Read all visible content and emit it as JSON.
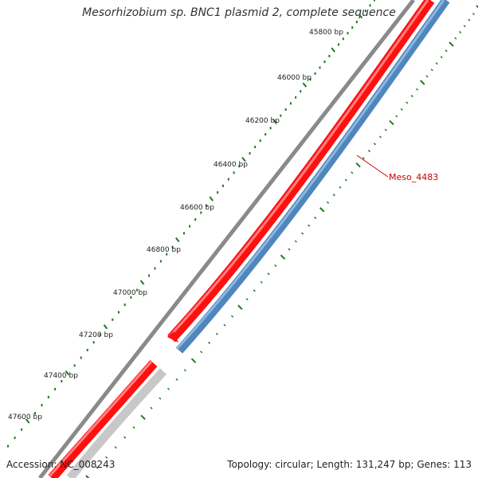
{
  "title": "Mesorhizobium sp. BNC1 plasmid 2, complete sequence",
  "accession": "Accession: NC_008243",
  "summary": "Topology: circular; Length: 131,247 bp; Genes: 113",
  "ticks": [
    "45800 bp",
    "46000 bp",
    "46200 bp",
    "46400 bp",
    "46600 bp",
    "46800 bp",
    "47000 bp",
    "47200 bp",
    "47400 bp",
    "47600 bp"
  ],
  "gene_label": "Meso_4483",
  "colors": {
    "backbone": "#808080",
    "forward_gene": "#ff0000",
    "reverse_gene": "#4f86bd",
    "other_gene": "#c8c8c8",
    "ruler": "#1f7a1f",
    "label": "#cc0000"
  }
}
